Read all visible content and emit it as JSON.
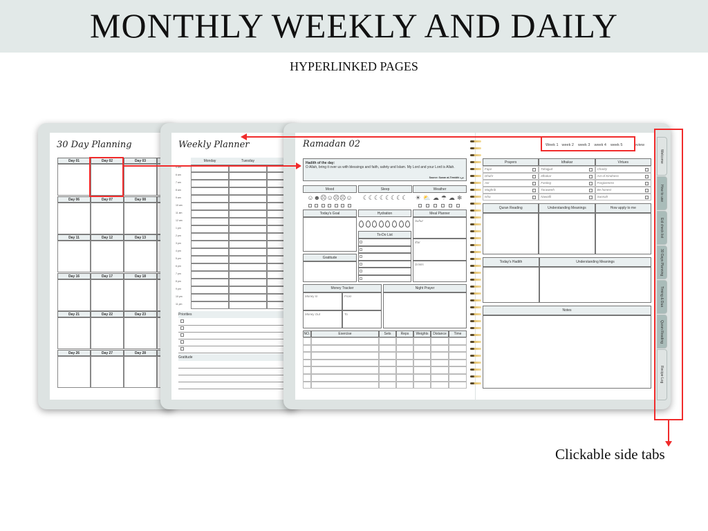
{
  "header": {
    "title": "MONTHLY WEEKLY AND DAILY",
    "subtitle": "HYPERLINKED PAGES"
  },
  "monthly": {
    "title": "30 Day Planning",
    "days": [
      "Day 01",
      "Day 02",
      "Day 03",
      "Day 06",
      "Day 07",
      "Day 08",
      "Day 11",
      "Day 12",
      "Day 13",
      "Day 16",
      "Day 17",
      "Day 18",
      "Day 21",
      "Day 22",
      "Day 23",
      "Day 26",
      "Day 27",
      "Day 28"
    ]
  },
  "weekly": {
    "title": "Weekly Planner",
    "days": [
      "Monday",
      "Tuesday",
      "We"
    ],
    "times": [
      "5 am",
      "6 am",
      "7 am",
      "8 am",
      "9 am",
      "10 am",
      "11 am",
      "12 am",
      "1 pm",
      "2 pm",
      "3 pm",
      "4 pm",
      "5 pm",
      "6 pm",
      "7 pm",
      "8 pm",
      "9 pm",
      "10 pm",
      "11 pm"
    ],
    "priorities_label": "Priorities",
    "gratitude_label": "Gratitude"
  },
  "daily": {
    "title": "Ramadan 02",
    "hadith_label": "Hadith of the day:",
    "hadith_text": "O Allah, bring it over us with blessings and faith, safety and Islam. My Lord and your Lord is Allah.",
    "hadith_source": "Source: Sunan at-Tirmidhi جزء",
    "mood": "Mood",
    "sleep": "Sleep",
    "weather": "Weather",
    "mood_icons": "☺☻☹☺☹☹☺",
    "sleep_icons": "☾☾☾☾☾☾☾☾",
    "weather_icons": "☀⛅☁☂☁❄",
    "goal": "Today's Goal",
    "gratitude": "Gratitude",
    "hydration": "Hydration",
    "drops": "💧",
    "todo": "To-Do List",
    "meal": "Meal Planner",
    "meals": [
      "Suhur",
      "Iftar",
      "Drinks"
    ],
    "money": "Money Tracker",
    "money_fields": [
      "Money In",
      "From",
      "Money Out",
      "To"
    ],
    "night": "Night Prayer",
    "exercise_cols": [
      "NO.",
      "Exercise",
      "Sets",
      "Reps",
      "Weights",
      "Distance",
      "Time"
    ]
  },
  "right": {
    "weeks": [
      "Week 1",
      "week 2",
      "week 3",
      "week 4",
      "week 5"
    ],
    "review": "eview",
    "cols": [
      "Prayers",
      "Idhakar",
      "Virtues"
    ],
    "rows": [
      [
        "Fajar",
        "Tahajjud",
        "Charity"
      ],
      [
        "Dhuhr",
        "Idhakar",
        "Act of Kindness"
      ],
      [
        "Asr",
        "Fasting",
        "Forgiveness"
      ],
      [
        "Maghrib",
        "Taraweeh",
        "Be honest"
      ],
      [
        "Isha",
        "Nawafil",
        "Sunnah"
      ]
    ],
    "quran_cols": [
      "Quran Reading",
      "Understanding Meanings",
      "How apply to me"
    ],
    "hadith_cols": [
      "Today's Hadith",
      "Understanding Meanings"
    ],
    "notes": "Notes"
  },
  "side_tabs": [
    "Welcome",
    "How to use",
    "Eid check list",
    "30 Days Planning",
    "Timing & Dua",
    "Quran Reading",
    "Recipe Log"
  ],
  "callout": "Clickable side tabs",
  "colors": {
    "accent": "#f02b2b",
    "header_band": "#e2e9e8",
    "tab_teal": "#a9bcb9"
  }
}
